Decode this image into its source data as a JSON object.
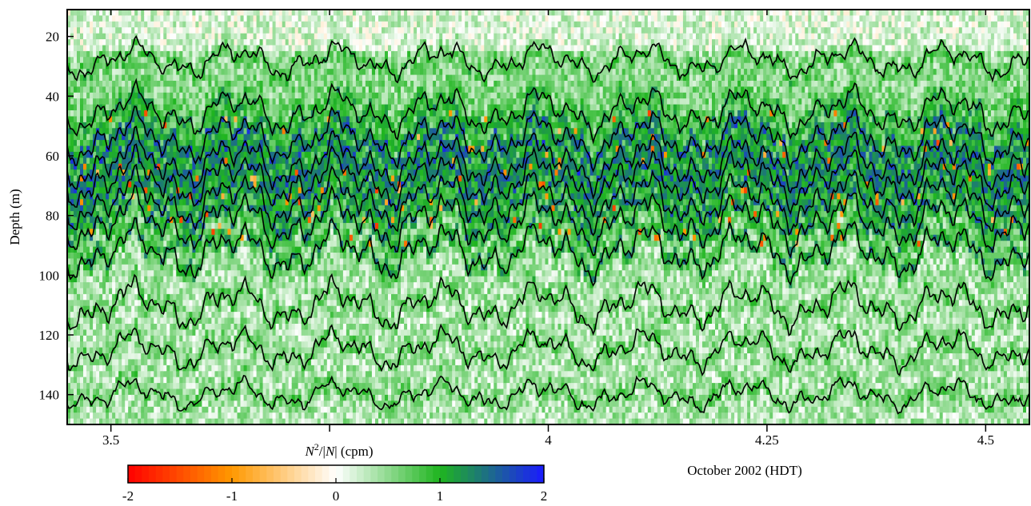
{
  "chart_data": {
    "type": "heatmap",
    "xlabel": "October 2002 (HDT)",
    "ylabel": "Depth (m)",
    "xlim": [
      3.45,
      4.55
    ],
    "ylim": [
      150,
      11
    ],
    "x_ticks": [
      3.5,
      3.75,
      4,
      4.25,
      4.5
    ],
    "x_tick_labels": [
      "3.5",
      "",
      "4",
      "4.25",
      "4.5"
    ],
    "y_ticks": [
      20,
      40,
      60,
      80,
      100,
      120,
      140
    ],
    "y_tick_labels": [
      "20",
      "40",
      "60",
      "80",
      "100",
      "120",
      "140"
    ],
    "colorbar": {
      "label_base": "N",
      "label_sup": "2",
      "label_rest": "/|N| (cpm)",
      "range": [
        -2,
        2
      ],
      "ticks": [
        -2,
        -1,
        0,
        1,
        2
      ],
      "tick_labels": [
        "-2",
        "-1",
        "0",
        "1",
        "2"
      ],
      "colors": [
        "#ff0000",
        "#ff9900",
        "#ffffff",
        "#1fb51f",
        "#1a1aff"
      ]
    },
    "isopycnals_mean_depth": [
      28,
      45,
      54,
      62,
      68,
      75,
      82,
      92,
      110,
      125,
      140
    ],
    "grid": false
  }
}
